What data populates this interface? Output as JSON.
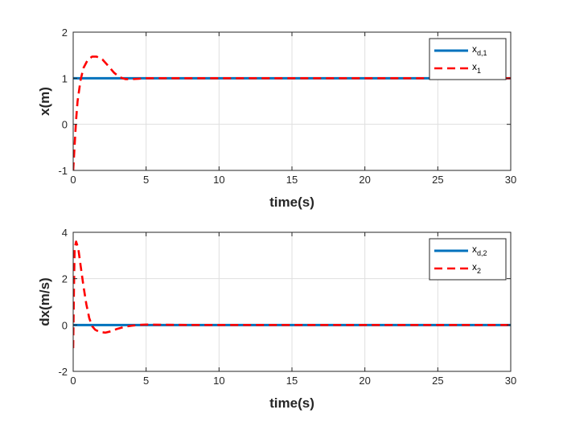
{
  "chart_data": [
    {
      "type": "line",
      "xlabel": "time(s)",
      "ylabel": "x(m)",
      "xlim": [
        0,
        30
      ],
      "ylim": [
        -1,
        2
      ],
      "xticks": [
        "0",
        "5",
        "10",
        "15",
        "20",
        "25",
        "30"
      ],
      "yticks": [
        "-1",
        "0",
        "1",
        "2"
      ],
      "grid": true,
      "legend_position": "top-right",
      "series": [
        {
          "legend_base": "x",
          "legend_sub": "d,1",
          "color": "#0072bd",
          "style": "solid",
          "x": [
            0,
            30
          ],
          "y": [
            1,
            1
          ]
        },
        {
          "legend_base": "x",
          "legend_sub": "1",
          "color": "#ff0000",
          "style": "dashed",
          "x": [
            0,
            0.1,
            0.2,
            0.3,
            0.5,
            0.7,
            1.0,
            1.3,
            1.6,
            2.0,
            2.4,
            2.8,
            3.2,
            3.6,
            4.0,
            4.5,
            5,
            6,
            8,
            10,
            12,
            15,
            18,
            21,
            24,
            27,
            30
          ],
          "y": [
            -1,
            -0.45,
            0.1,
            0.5,
            0.95,
            1.22,
            1.4,
            1.47,
            1.47,
            1.41,
            1.27,
            1.12,
            1.02,
            0.98,
            0.98,
            0.99,
            1.0,
            1.0,
            1.0,
            1.0,
            1.0,
            1.0,
            1.0,
            1.0,
            1.0,
            1.0,
            1.0
          ]
        }
      ]
    },
    {
      "type": "line",
      "xlabel": "time(s)",
      "ylabel": "dx(m/s)",
      "xlim": [
        0,
        30
      ],
      "ylim": [
        -2,
        4
      ],
      "xticks": [
        "0",
        "5",
        "10",
        "15",
        "20",
        "25",
        "30"
      ],
      "yticks": [
        "-2",
        "0",
        "2",
        "4"
      ],
      "grid": true,
      "legend_position": "top-right",
      "series": [
        {
          "legend_base": "x",
          "legend_sub": "d,2",
          "color": "#0072bd",
          "style": "solid",
          "x": [
            0,
            30
          ],
          "y": [
            0,
            0
          ]
        },
        {
          "legend_base": "x",
          "legend_sub": "2",
          "color": "#ff0000",
          "style": "dashed",
          "x": [
            0,
            0.05,
            0.1,
            0.2,
            0.35,
            0.5,
            0.7,
            0.9,
            1.1,
            1.3,
            1.5,
            1.8,
            2.2,
            2.6,
            3.0,
            3.5,
            4.0,
            4.5,
            5,
            6,
            8,
            10,
            15,
            20,
            25,
            30
          ],
          "y": [
            -1,
            1.5,
            3.3,
            3.6,
            3.3,
            2.6,
            1.7,
            0.9,
            0.3,
            -0.05,
            -0.2,
            -0.3,
            -0.33,
            -0.27,
            -0.17,
            -0.08,
            -0.03,
            0.0,
            0.02,
            0.01,
            0.0,
            0.0,
            0.0,
            0.0,
            0.0,
            0.0
          ]
        }
      ]
    }
  ]
}
